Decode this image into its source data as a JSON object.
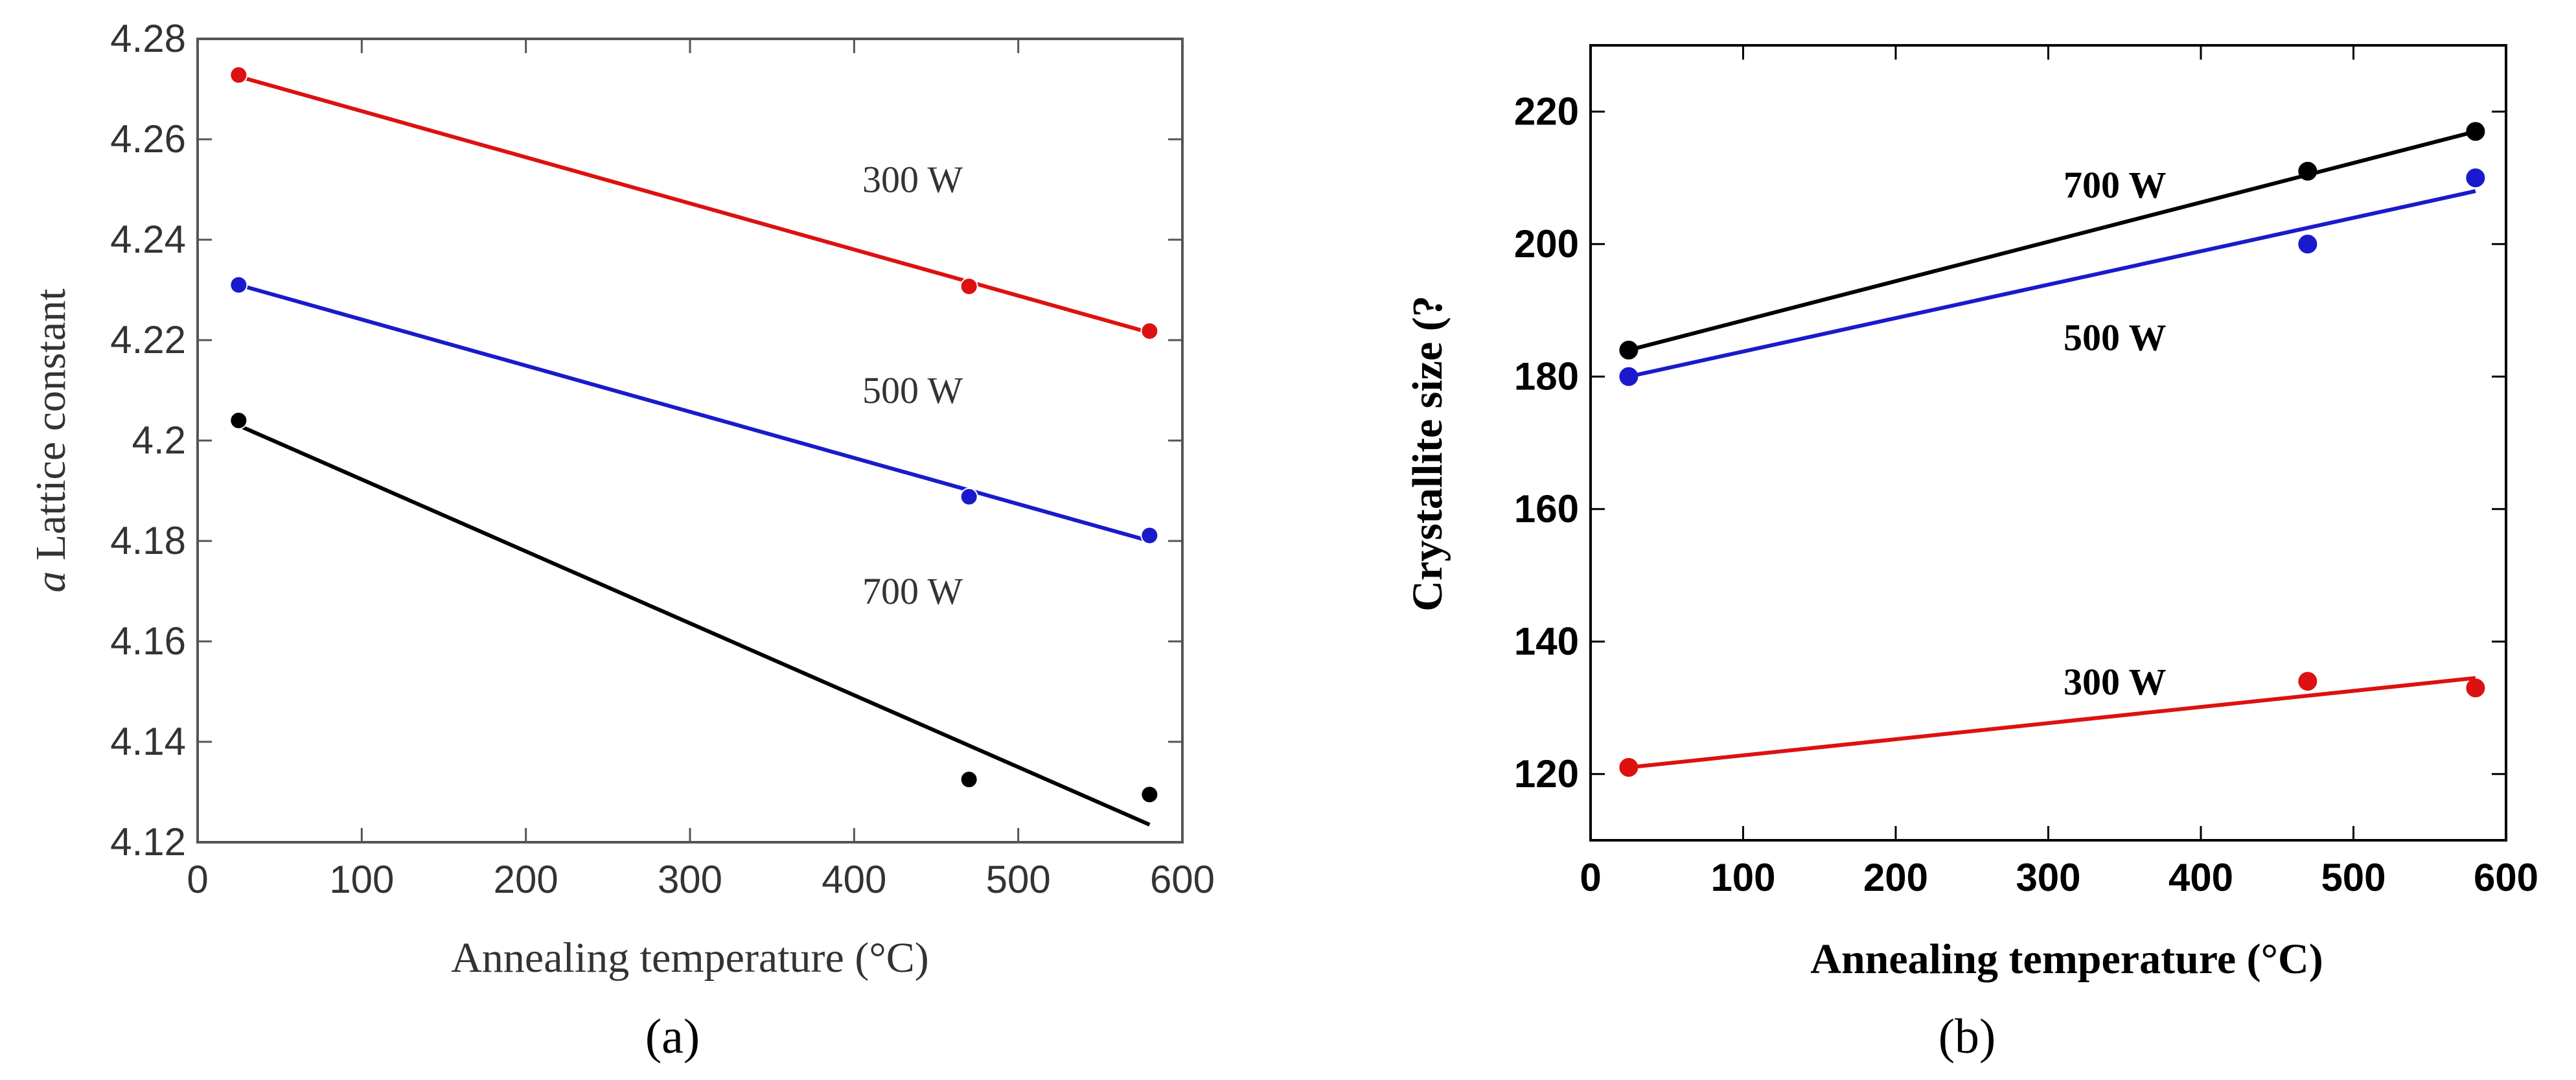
{
  "chart_data": [
    {
      "panel": "a",
      "type": "scatter",
      "caption": "(a)",
      "xlabel": "Annealing temperature (°C)",
      "ylabel_italic": "a",
      "ylabel_rest": " Lattice constant",
      "xlim": [
        0,
        600
      ],
      "ylim": [
        4.12,
        4.28
      ],
      "xticks": [
        0,
        100,
        200,
        300,
        400,
        500,
        600
      ],
      "xtick_labels": [
        "0",
        "100",
        "200",
        "300",
        "400",
        "500",
        "600"
      ],
      "yticks": [
        4.12,
        4.14,
        4.16,
        4.18,
        4.2,
        4.22,
        4.24,
        4.26,
        4.28
      ],
      "ytick_labels": [
        "4.12",
        "4.14",
        "4.16",
        "4.18",
        "4.2",
        "4.22",
        "4.24",
        "4.26",
        "4.28"
      ],
      "grid": false,
      "series": [
        {
          "name": "300 W",
          "color": "#dd1111",
          "x": [
            25,
            470,
            580
          ],
          "y": [
            4.2728,
            4.2307,
            4.2218
          ],
          "fit": [
            [
              25,
              4.2725
            ],
            [
              580,
              4.2215
            ]
          ],
          "label_at": [
            405,
            4.2495
          ]
        },
        {
          "name": "500 W",
          "color": "#1a1acc",
          "x": [
            25,
            470,
            580
          ],
          "y": [
            4.231,
            4.1888,
            4.1811
          ],
          "fit": [
            [
              25,
              4.231
            ],
            [
              580,
              4.18
            ]
          ],
          "label_at": [
            405,
            4.2075
          ]
        },
        {
          "name": "700 W",
          "color": "#000000",
          "x": [
            25,
            470,
            580
          ],
          "y": [
            4.204,
            4.1325,
            4.1295
          ],
          "fit": [
            [
              25,
              4.203
            ],
            [
              580,
              4.1235
            ]
          ],
          "label_at": [
            405,
            4.1675
          ]
        }
      ]
    },
    {
      "panel": "b",
      "type": "scatter",
      "caption": "(b)",
      "xlabel": "Annealing temperature (°C)",
      "ylabel": "Crystallite size (?",
      "xlim": [
        0,
        600
      ],
      "ylim": [
        110,
        230
      ],
      "xticks": [
        0,
        100,
        200,
        300,
        400,
        500,
        600
      ],
      "xtick_labels": [
        "0",
        "100",
        "200",
        "300",
        "400",
        "500",
        "600"
      ],
      "yticks": [
        120,
        140,
        160,
        180,
        200,
        220
      ],
      "ytick_labels": [
        "120",
        "140",
        "160",
        "180",
        "200",
        "220"
      ],
      "grid": false,
      "series": [
        {
          "name": "700 W",
          "color": "#000000",
          "x": [
            25,
            470,
            580
          ],
          "y": [
            184,
            211,
            217
          ],
          "fit": [
            [
              25,
              184
            ],
            [
              580,
              217
            ]
          ],
          "label_at": [
            310,
            207
          ]
        },
        {
          "name": "500 W",
          "color": "#1a1acc",
          "x": [
            25,
            470,
            580
          ],
          "y": [
            180,
            200,
            210
          ],
          "fit": [
            [
              25,
              180
            ],
            [
              580,
              208
            ]
          ],
          "label_at": [
            310,
            184
          ]
        },
        {
          "name": "300 W",
          "color": "#dd1111",
          "x": [
            25,
            470,
            580
          ],
          "y": [
            121,
            134,
            133
          ],
          "fit": [
            [
              25,
              121
            ],
            [
              580,
              134.5
            ]
          ],
          "label_at": [
            310,
            132
          ]
        }
      ]
    }
  ]
}
